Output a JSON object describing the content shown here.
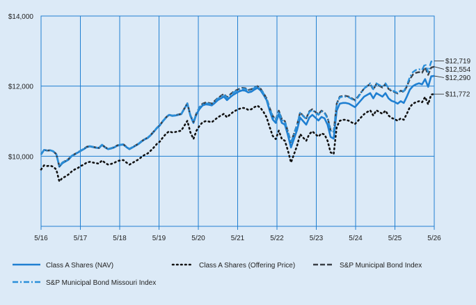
{
  "chart_data": {
    "type": "line",
    "title": "",
    "xlabel": "",
    "ylabel": "",
    "ylim": [
      8000,
      14000
    ],
    "x_ticks": [
      "5/16",
      "5/17",
      "5/18",
      "5/19",
      "5/20",
      "5/21",
      "5/22",
      "5/23",
      "5/24",
      "5/25",
      "5/26"
    ],
    "y_ticks": [
      {
        "value": 10000,
        "label": "$10,000"
      },
      {
        "value": 12000,
        "label": "$12,000"
      },
      {
        "value": 14000,
        "label": "$14,000"
      }
    ],
    "grid": true,
    "legend_position": "bottom",
    "series": [
      {
        "name": "Class A Shares (NAV)",
        "color": "#1f7fd1",
        "style": "solid",
        "end_label": "$12,290",
        "values": [
          10050,
          10180,
          10160,
          10170,
          10140,
          10060,
          9700,
          9800,
          9850,
          9900,
          10000,
          10050,
          10100,
          10150,
          10200,
          10260,
          10280,
          10260,
          10240,
          10230,
          10320,
          10250,
          10200,
          10220,
          10250,
          10300,
          10320,
          10330,
          10260,
          10200,
          10250,
          10300,
          10350,
          10420,
          10480,
          10520,
          10600,
          10700,
          10800,
          10880,
          11000,
          11100,
          11180,
          11150,
          11160,
          11180,
          11200,
          11350,
          11500,
          11150,
          10950,
          11200,
          11350,
          11450,
          11480,
          11470,
          11450,
          11520,
          11600,
          11650,
          11700,
          11600,
          11680,
          11750,
          11800,
          11850,
          11880,
          11870,
          11820,
          11840,
          11900,
          11950,
          11880,
          11750,
          11600,
          11300,
          11050,
          10950,
          11200,
          10950,
          10900,
          10600,
          10250,
          10500,
          10750,
          11100,
          11000,
          10900,
          11100,
          11180,
          11100,
          11020,
          11120,
          11080,
          10900,
          10550,
          10500,
          11300,
          11500,
          11520,
          11520,
          11500,
          11450,
          11400,
          11500,
          11600,
          11700,
          11750,
          11800,
          11650,
          11800,
          11750,
          11700,
          11800,
          11650,
          11580,
          11550,
          11500,
          11570,
          11520,
          11700,
          11900,
          12000,
          12050,
          12080,
          12050,
          12200,
          11980,
          12280,
          12290
        ]
      },
      {
        "name": "Class A Shares (Offering Price)",
        "color": "#111111",
        "style": "dotted",
        "end_label": "$11,772",
        "values": [
          9620,
          9740,
          9720,
          9730,
          9700,
          9620,
          9280,
          9380,
          9420,
          9480,
          9560,
          9620,
          9660,
          9720,
          9760,
          9820,
          9840,
          9820,
          9800,
          9790,
          9880,
          9810,
          9760,
          9780,
          9810,
          9860,
          9880,
          9890,
          9820,
          9760,
          9810,
          9860,
          9910,
          9980,
          10040,
          10080,
          10160,
          10250,
          10350,
          10420,
          10540,
          10640,
          10710,
          10680,
          10690,
          10710,
          10730,
          10870,
          11010,
          10680,
          10490,
          10730,
          10870,
          10970,
          11000,
          10990,
          10970,
          11040,
          11110,
          11160,
          11210,
          11110,
          11190,
          11260,
          11310,
          11350,
          11380,
          11370,
          11320,
          11340,
          11400,
          11440,
          11380,
          11260,
          11110,
          10830,
          10580,
          10490,
          10730,
          10490,
          10440,
          10160,
          9820,
          10060,
          10300,
          10630,
          10530,
          10440,
          10630,
          10710,
          10630,
          10560,
          10650,
          10620,
          10440,
          10110,
          10060,
          10830,
          11010,
          11040,
          11040,
          11010,
          10960,
          10920,
          11010,
          11110,
          11200,
          11260,
          11310,
          11160,
          11310,
          11260,
          11210,
          11300,
          11160,
          11090,
          11060,
          11010,
          11080,
          11040,
          11210,
          11400,
          11500,
          11540,
          11570,
          11540,
          11690,
          11480,
          11760,
          11772
        ]
      },
      {
        "name": "S&P Municipal Bond Index",
        "color": "#3a3f47",
        "style": "dashed",
        "end_label": "$12,554",
        "values": [
          10050,
          10180,
          10160,
          10170,
          10140,
          10060,
          9720,
          9820,
          9870,
          9920,
          10010,
          10060,
          10110,
          10160,
          10210,
          10270,
          10290,
          10270,
          10250,
          10240,
          10330,
          10260,
          10210,
          10230,
          10260,
          10310,
          10330,
          10340,
          10270,
          10210,
          10260,
          10310,
          10360,
          10430,
          10490,
          10530,
          10610,
          10710,
          10810,
          10890,
          11010,
          11110,
          11190,
          11160,
          11170,
          11190,
          11210,
          11360,
          11510,
          11170,
          10980,
          11230,
          11400,
          11500,
          11530,
          11520,
          11500,
          11580,
          11660,
          11720,
          11780,
          11680,
          11760,
          11830,
          11880,
          11920,
          11950,
          11940,
          11890,
          11910,
          11960,
          12000,
          11930,
          11800,
          11650,
          11380,
          11150,
          11050,
          11300,
          11060,
          11000,
          10700,
          10400,
          10650,
          10900,
          11250,
          11150,
          11080,
          11280,
          11340,
          11260,
          11200,
          11300,
          11250,
          11100,
          10750,
          10700,
          11500,
          11700,
          11720,
          11720,
          11700,
          11650,
          11600,
          11700,
          11820,
          11930,
          12000,
          12060,
          11900,
          12060,
          12010,
          11960,
          12060,
          11920,
          11860,
          11830,
          11790,
          11870,
          11830,
          11990,
          12200,
          12330,
          12380,
          12400,
          12380,
          12540,
          12320,
          12530,
          12554
        ]
      },
      {
        "name": "S&P Municipal Bond Missouri Index",
        "color": "#2b8fd9",
        "style": "dashdot",
        "end_label": "$12,719",
        "values": [
          10050,
          10180,
          10160,
          10170,
          10140,
          10060,
          9720,
          9820,
          9870,
          9920,
          10010,
          10060,
          10110,
          10160,
          10210,
          10270,
          10290,
          10270,
          10250,
          10240,
          10330,
          10260,
          10210,
          10230,
          10260,
          10310,
          10330,
          10340,
          10270,
          10210,
          10260,
          10310,
          10360,
          10430,
          10490,
          10530,
          10610,
          10710,
          10810,
          10890,
          11010,
          11110,
          11190,
          11160,
          11170,
          11190,
          11210,
          11360,
          11510,
          11170,
          10980,
          11230,
          11400,
          11480,
          11510,
          11500,
          11480,
          11560,
          11640,
          11700,
          11760,
          11660,
          11740,
          11810,
          11860,
          11900,
          11930,
          11920,
          11870,
          11890,
          11950,
          11990,
          11920,
          11790,
          11640,
          11360,
          11130,
          11030,
          11280,
          11040,
          10980,
          10690,
          10380,
          10640,
          10890,
          11240,
          11140,
          11060,
          11260,
          11320,
          11240,
          11180,
          11280,
          11230,
          11080,
          10730,
          10680,
          11480,
          11680,
          11700,
          11700,
          11680,
          11630,
          11580,
          11680,
          11810,
          11930,
          12010,
          12080,
          11910,
          12080,
          12030,
          11980,
          12080,
          11940,
          11880,
          11850,
          11800,
          11880,
          11850,
          12020,
          12260,
          12400,
          12460,
          12480,
          12460,
          12640,
          12400,
          12700,
          12719
        ]
      }
    ]
  }
}
